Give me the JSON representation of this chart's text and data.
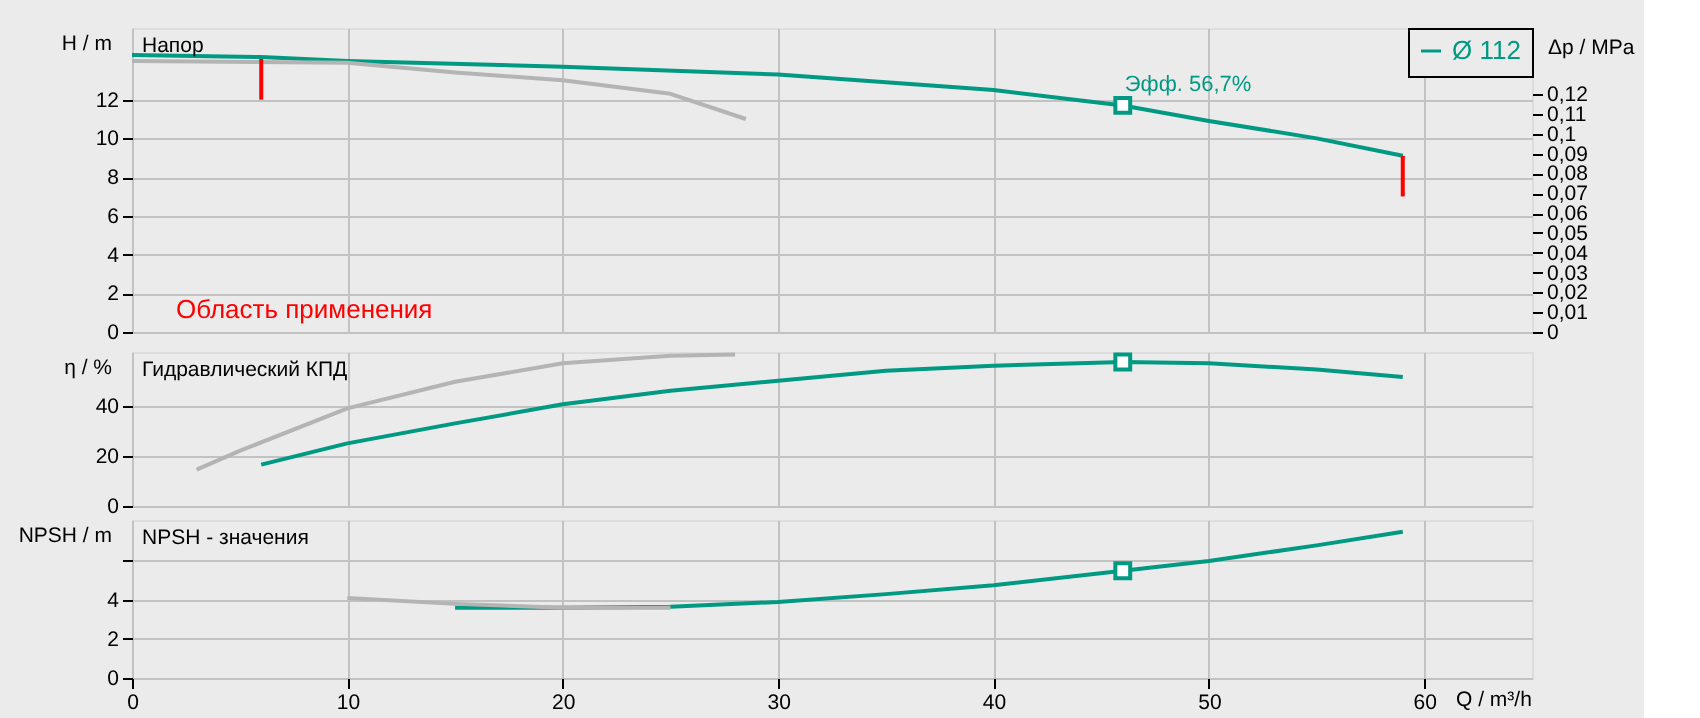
{
  "chart_data": [
    {
      "type": "line",
      "title": "Напор",
      "ylabel": "H / m",
      "y2label": "Δp / MPa",
      "xlim": [
        0,
        65
      ],
      "xticks": [
        0,
        10,
        20,
        30,
        40,
        50,
        60
      ],
      "ylim": [
        0,
        15.7
      ],
      "yticks": [
        0,
        2,
        4,
        6,
        8,
        10,
        12
      ],
      "y2lim": [
        0,
        0.1534
      ],
      "y2ticks": [
        0,
        {
          "value": 0.01,
          "label": "0,01"
        },
        {
          "value": 0.02,
          "label": "0,02"
        },
        {
          "value": 0.03,
          "label": "0,03"
        },
        {
          "value": 0.04,
          "label": "0,04"
        },
        {
          "value": 0.05,
          "label": "0,05"
        },
        {
          "value": 0.06,
          "label": "0,06"
        },
        {
          "value": 0.07,
          "label": "0,07"
        },
        {
          "value": 0.08,
          "label": "0,08"
        },
        {
          "value": 0.09,
          "label": "0,09"
        },
        {
          "value": 0.1,
          "label": "0,1"
        },
        {
          "value": 0.11,
          "label": "0,11"
        },
        {
          "value": 0.12,
          "label": "0,12"
        }
      ],
      "grid": true,
      "legend": "top right",
      "tick_labels": "y",
      "series": [
        {
          "name": "Ø 112",
          "color": "#009982",
          "x": [
            0,
            6,
            10,
            20,
            30,
            40,
            46,
            50,
            55,
            59
          ],
          "values": [
            14.3,
            14.2,
            14.0,
            13.7,
            13.3,
            12.5,
            11.7,
            10.9,
            10.0,
            9.1
          ]
        },
        {
          "color": "#b4b4b4",
          "x": [
            0,
            10,
            15,
            20,
            25,
            28.5
          ],
          "values": [
            14.0,
            13.9,
            13.4,
            13.0,
            12.3,
            11.0
          ]
        },
        {
          "type": "line",
          "color": "#ff0000",
          "x": [
            6,
            6
          ],
          "values": [
            14.1,
            12.0
          ]
        },
        {
          "type": "line",
          "color": "#ff0000",
          "x": [
            59,
            59
          ],
          "values": [
            9.1,
            7.0
          ]
        },
        {
          "type": "scatter",
          "marker": "square",
          "color": "#009982",
          "x": [
            46
          ],
          "values": [
            11.7
          ]
        }
      ],
      "annotations": [
        {
          "text": "Эфф.  56,7%",
          "x": 46,
          "y": 11.7
        },
        "Область применения"
      ]
    },
    {
      "type": "line",
      "title": "Гидравлический КПД",
      "ylabel": "η / %",
      "xlim": [
        0,
        65
      ],
      "xticks": [
        0,
        10,
        20,
        30,
        40,
        50,
        60
      ],
      "ylim": [
        0,
        61.5
      ],
      "yticks": [
        0,
        20,
        40
      ],
      "grid": true,
      "tick_labels": "y",
      "series": [
        {
          "color": "#009982",
          "x": [
            6,
            10,
            15,
            20,
            25,
            30,
            35,
            40,
            46,
            50,
            55,
            59
          ],
          "values": [
            16.5,
            25,
            33,
            40.6,
            46,
            50,
            54,
            56,
            57.5,
            57,
            54.5,
            51.5
          ]
        },
        {
          "color": "#b4b4b4",
          "x": [
            3,
            5,
            10,
            15,
            20,
            25,
            28
          ],
          "values": [
            14.5,
            22,
            39,
            49.6,
            57,
            60,
            60.5
          ]
        },
        {
          "type": "scatter",
          "marker": "square",
          "color": "#009982",
          "x": [
            46
          ],
          "values": [
            57.5
          ]
        }
      ]
    },
    {
      "type": "line",
      "title": "NPSH - значения",
      "ylabel": "NPSH / m",
      "xlabel": "Q / m³/h",
      "xlim": [
        0,
        65
      ],
      "xticks": [
        0,
        10,
        20,
        30,
        40,
        50,
        60
      ],
      "ylim": [
        0,
        8.1
      ],
      "yticks": [
        0,
        2,
        4,
        {
          "value": 6,
          "label": null
        }
      ],
      "grid": true,
      "series": [
        {
          "color": "#009982",
          "x": [
            15,
            20,
            25,
            30,
            35,
            40,
            46,
            50,
            55,
            59
          ],
          "values": [
            3.6,
            3.6,
            3.65,
            3.9,
            4.3,
            4.75,
            5.5,
            6.0,
            6.8,
            7.5
          ]
        },
        {
          "color": "#b4b4b4",
          "x": [
            10,
            15,
            20,
            25
          ],
          "values": [
            4.1,
            3.8,
            3.6,
            3.6
          ]
        },
        {
          "type": "scatter",
          "marker": "square",
          "color": "#009982",
          "x": [
            46
          ],
          "values": [
            5.5
          ]
        }
      ]
    }
  ]
}
